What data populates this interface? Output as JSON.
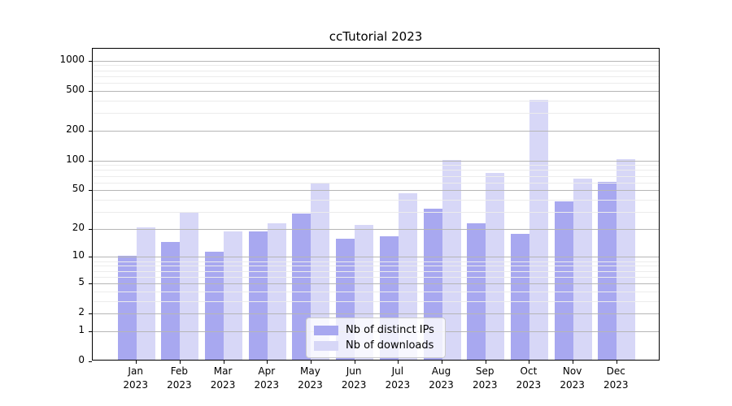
{
  "figure": {
    "title": "ccTutorial 2023",
    "background": "#ffffff"
  },
  "chart_data": {
    "type": "bar",
    "title": "ccTutorial 2023",
    "xlabel": "",
    "ylabel": "",
    "yscale": "log10(value+1)",
    "ylim": [
      0,
      1280
    ],
    "grid": "major and minor horizontal gridlines, drawn above bars",
    "legend_position": "lower center inside plot",
    "x_labels": [
      {
        "month": "Jan",
        "year": "2023"
      },
      {
        "month": "Feb",
        "year": "2023"
      },
      {
        "month": "Mar",
        "year": "2023"
      },
      {
        "month": "Apr",
        "year": "2023"
      },
      {
        "month": "May",
        "year": "2023"
      },
      {
        "month": "Jun",
        "year": "2023"
      },
      {
        "month": "Jul",
        "year": "2023"
      },
      {
        "month": "Aug",
        "year": "2023"
      },
      {
        "month": "Sep",
        "year": "2023"
      },
      {
        "month": "Oct",
        "year": "2023"
      },
      {
        "month": "Nov",
        "year": "2023"
      },
      {
        "month": "Dec",
        "year": "2023"
      }
    ],
    "yticks": [
      {
        "value": 0,
        "label": "0"
      },
      {
        "value": 1,
        "label": "1"
      },
      {
        "value": 2,
        "label": "2"
      },
      {
        "value": 5,
        "label": "5"
      },
      {
        "value": 10,
        "label": "10"
      },
      {
        "value": 20,
        "label": "20"
      },
      {
        "value": 50,
        "label": "50"
      },
      {
        "value": 100,
        "label": "100"
      },
      {
        "value": 200,
        "label": "200"
      },
      {
        "value": 500,
        "label": "500"
      },
      {
        "value": 1000,
        "label": "1000"
      }
    ],
    "series": [
      {
        "name": "Nb of distinct IPs",
        "color": "#a8a8f0",
        "values": [
          10,
          14,
          11,
          18,
          28,
          15,
          16,
          31,
          22,
          17,
          37,
          59
        ]
      },
      {
        "name": "Nb of downloads",
        "color": "#d7d7f7",
        "values": [
          20,
          29,
          18,
          22,
          57,
          21,
          45,
          97,
          72,
          390,
          63,
          100
        ]
      }
    ],
    "colors": {
      "grid_major": "#b6b6b6",
      "grid_minor": "#ececec",
      "axis": "#000000",
      "legend_border": "#cccccc",
      "legend_background": "rgba(255,255,255,0.8)"
    }
  }
}
